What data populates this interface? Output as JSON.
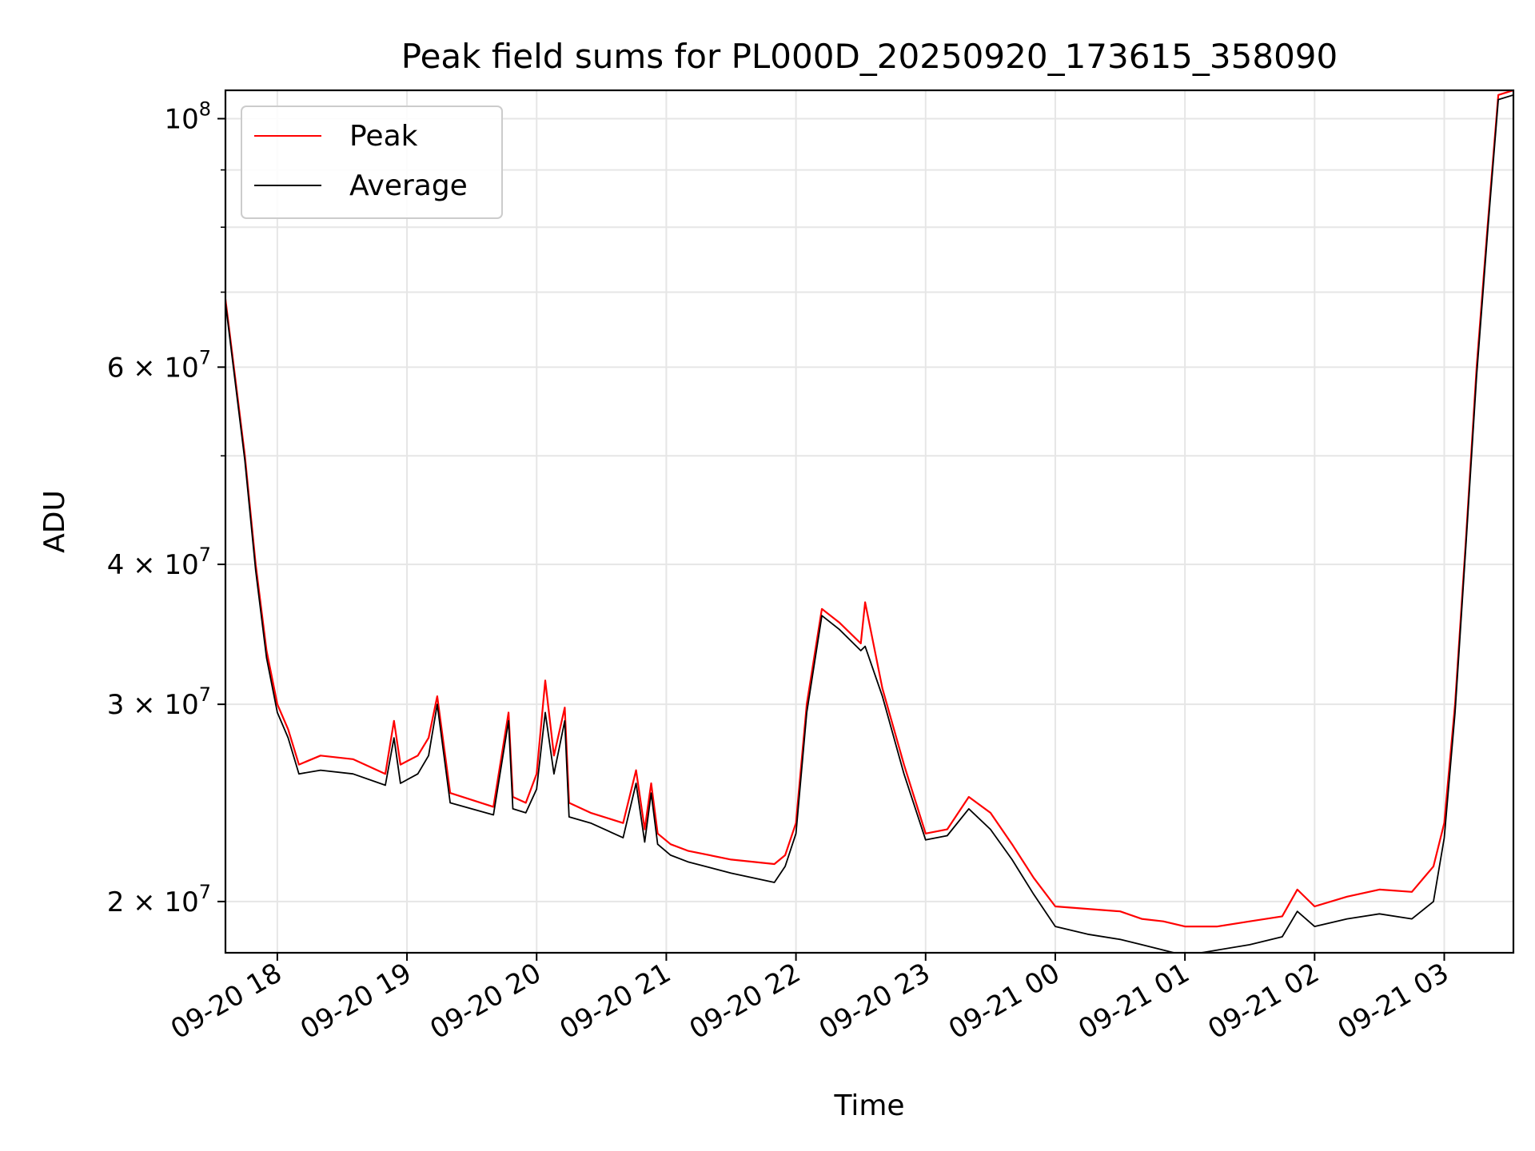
{
  "chart_data": {
    "type": "line",
    "title": "Peak field sums for PL000D_20250920_173615_358090",
    "xlabel": "Time",
    "ylabel": "ADU",
    "y_scale": "log",
    "ylim": [
      18000000,
      106000000
    ],
    "xlim": [
      "2025-09-20 17:36",
      "2025-09-21 03:32"
    ],
    "grid": true,
    "legend_position": "upper-left",
    "x_ticks": [
      {
        "value": "2025-09-20 18:00",
        "label": "09-20 18"
      },
      {
        "value": "2025-09-20 19:00",
        "label": "09-20 19"
      },
      {
        "value": "2025-09-20 20:00",
        "label": "09-20 20"
      },
      {
        "value": "2025-09-20 21:00",
        "label": "09-20 21"
      },
      {
        "value": "2025-09-20 22:00",
        "label": "09-20 22"
      },
      {
        "value": "2025-09-20 23:00",
        "label": "09-20 23"
      },
      {
        "value": "2025-09-21 00:00",
        "label": "09-21 00"
      },
      {
        "value": "2025-09-21 01:00",
        "label": "09-21 01"
      },
      {
        "value": "2025-09-21 02:00",
        "label": "09-21 02"
      },
      {
        "value": "2025-09-21 03:00",
        "label": "09-21 03"
      }
    ],
    "y_ticks": [
      {
        "value": 20000000,
        "mantissa": "2 × 10",
        "exp": "7"
      },
      {
        "value": 30000000,
        "mantissa": "3 × 10",
        "exp": "7"
      },
      {
        "value": 40000000,
        "mantissa": "4 × 10",
        "exp": "7"
      },
      {
        "value": 60000000,
        "mantissa": "6 × 10",
        "exp": "7"
      },
      {
        "value": 100000000,
        "mantissa": "10",
        "exp": "8"
      }
    ],
    "y_minor_ticks": [
      50000000,
      70000000,
      80000000,
      90000000
    ],
    "series": [
      {
        "name": "Peak",
        "color": "#ff0000",
        "x": [
          "2025-09-20 17:36",
          "2025-09-20 17:45",
          "2025-09-20 17:50",
          "2025-09-20 17:55",
          "2025-09-20 18:00",
          "2025-09-20 18:05",
          "2025-09-20 18:10",
          "2025-09-20 18:20",
          "2025-09-20 18:35",
          "2025-09-20 18:50",
          "2025-09-20 18:54",
          "2025-09-20 18:57",
          "2025-09-20 19:05",
          "2025-09-20 19:10",
          "2025-09-20 19:14",
          "2025-09-20 19:20",
          "2025-09-20 19:40",
          "2025-09-20 19:47",
          "2025-09-20 19:49",
          "2025-09-20 19:55",
          "2025-09-20 20:00",
          "2025-09-20 20:04",
          "2025-09-20 20:08",
          "2025-09-20 20:13",
          "2025-09-20 20:15",
          "2025-09-20 20:25",
          "2025-09-20 20:40",
          "2025-09-20 20:46",
          "2025-09-20 20:50",
          "2025-09-20 20:53",
          "2025-09-20 20:56",
          "2025-09-20 21:02",
          "2025-09-20 21:10",
          "2025-09-20 21:30",
          "2025-09-20 21:50",
          "2025-09-20 21:55",
          "2025-09-20 22:00",
          "2025-09-20 22:05",
          "2025-09-20 22:12",
          "2025-09-20 22:20",
          "2025-09-20 22:30",
          "2025-09-20 22:32",
          "2025-09-20 22:40",
          "2025-09-20 22:50",
          "2025-09-20 23:00",
          "2025-09-20 23:10",
          "2025-09-20 23:20",
          "2025-09-20 23:30",
          "2025-09-20 23:40",
          "2025-09-20 23:50",
          "2025-09-21 00:00",
          "2025-09-21 00:15",
          "2025-09-21 00:30",
          "2025-09-21 00:40",
          "2025-09-21 00:50",
          "2025-09-21 01:00",
          "2025-09-21 01:15",
          "2025-09-21 01:30",
          "2025-09-21 01:45",
          "2025-09-21 01:52",
          "2025-09-21 02:00",
          "2025-09-21 02:15",
          "2025-09-21 02:30",
          "2025-09-21 02:45",
          "2025-09-21 02:55",
          "2025-09-21 03:00",
          "2025-09-21 03:05",
          "2025-09-21 03:10",
          "2025-09-21 03:15",
          "2025-09-21 03:20",
          "2025-09-21 03:25",
          "2025-09-21 03:32"
        ],
        "y": [
          69000000,
          50000000,
          40000000,
          33500000,
          30000000,
          28500000,
          26500000,
          27000000,
          26800000,
          26000000,
          29000000,
          26500000,
          27000000,
          28000000,
          30500000,
          25000000,
          24300000,
          29500000,
          24800000,
          24500000,
          26000000,
          31500000,
          27000000,
          29800000,
          24500000,
          24000000,
          23500000,
          26200000,
          23200000,
          25500000,
          23000000,
          22500000,
          22200000,
          21800000,
          21600000,
          22000000,
          23500000,
          30000000,
          36500000,
          35500000,
          34000000,
          37000000,
          31000000,
          26500000,
          23000000,
          23200000,
          24800000,
          24000000,
          22500000,
          21000000,
          19800000,
          19700000,
          19600000,
          19300000,
          19200000,
          19000000,
          19000000,
          19200000,
          19400000,
          20500000,
          19800000,
          20200000,
          20500000,
          20400000,
          21500000,
          23500000,
          30000000,
          42000000,
          60000000,
          80000000,
          105000000,
          106000000
        ]
      },
      {
        "name": "Average",
        "color": "#000000",
        "x": [
          "2025-09-20 17:36",
          "2025-09-20 17:45",
          "2025-09-20 17:50",
          "2025-09-20 17:55",
          "2025-09-20 18:00",
          "2025-09-20 18:05",
          "2025-09-20 18:10",
          "2025-09-20 18:20",
          "2025-09-20 18:35",
          "2025-09-20 18:50",
          "2025-09-20 18:54",
          "2025-09-20 18:57",
          "2025-09-20 19:05",
          "2025-09-20 19:10",
          "2025-09-20 19:14",
          "2025-09-20 19:20",
          "2025-09-20 19:40",
          "2025-09-20 19:47",
          "2025-09-20 19:49",
          "2025-09-20 19:55",
          "2025-09-20 20:00",
          "2025-09-20 20:04",
          "2025-09-20 20:08",
          "2025-09-20 20:13",
          "2025-09-20 20:15",
          "2025-09-20 20:25",
          "2025-09-20 20:40",
          "2025-09-20 20:46",
          "2025-09-20 20:50",
          "2025-09-20 20:53",
          "2025-09-20 20:56",
          "2025-09-20 21:02",
          "2025-09-20 21:10",
          "2025-09-20 21:30",
          "2025-09-20 21:50",
          "2025-09-20 21:55",
          "2025-09-20 22:00",
          "2025-09-20 22:05",
          "2025-09-20 22:12",
          "2025-09-20 22:20",
          "2025-09-20 22:30",
          "2025-09-20 22:32",
          "2025-09-20 22:40",
          "2025-09-20 22:50",
          "2025-09-20 23:00",
          "2025-09-20 23:10",
          "2025-09-20 23:20",
          "2025-09-20 23:30",
          "2025-09-20 23:40",
          "2025-09-20 23:50",
          "2025-09-21 00:00",
          "2025-09-21 00:15",
          "2025-09-21 00:30",
          "2025-09-21 00:40",
          "2025-09-21 00:50",
          "2025-09-21 01:00",
          "2025-09-21 01:15",
          "2025-09-21 01:30",
          "2025-09-21 01:45",
          "2025-09-21 01:52",
          "2025-09-21 02:00",
          "2025-09-21 02:15",
          "2025-09-21 02:30",
          "2025-09-21 02:45",
          "2025-09-21 02:55",
          "2025-09-21 03:00",
          "2025-09-21 03:05",
          "2025-09-21 03:10",
          "2025-09-21 03:15",
          "2025-09-21 03:20",
          "2025-09-21 03:25",
          "2025-09-21 03:32"
        ],
        "y": [
          68500000,
          49500000,
          39500000,
          33000000,
          29500000,
          28000000,
          26000000,
          26200000,
          26000000,
          25400000,
          28000000,
          25500000,
          26000000,
          27000000,
          30000000,
          24500000,
          23900000,
          29000000,
          24200000,
          24000000,
          25200000,
          29500000,
          26000000,
          29000000,
          23800000,
          23500000,
          22800000,
          25500000,
          22600000,
          25000000,
          22500000,
          22000000,
          21700000,
          21200000,
          20800000,
          21500000,
          23000000,
          29500000,
          36000000,
          35000000,
          33500000,
          33800000,
          30500000,
          26000000,
          22700000,
          22900000,
          24200000,
          23200000,
          21800000,
          20300000,
          19000000,
          18700000,
          18500000,
          18300000,
          18100000,
          17900000,
          18100000,
          18300000,
          18600000,
          19600000,
          19000000,
          19300000,
          19500000,
          19300000,
          20000000,
          22800000,
          29500000,
          41500000,
          59000000,
          79000000,
          104000000,
          105000000
        ]
      }
    ]
  }
}
